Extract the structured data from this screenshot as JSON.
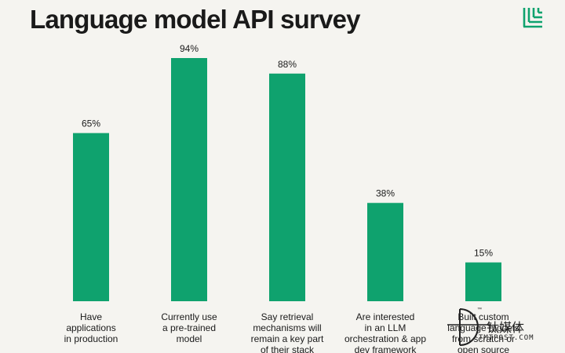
{
  "title": "Language model API survey",
  "colors": {
    "bar": "#0fa26e",
    "logo": "#0fa26e",
    "text": "#1a1a1a"
  },
  "chart_data": {
    "type": "bar",
    "categories": [
      [
        "Have",
        "applications",
        "in production"
      ],
      [
        "Currently use",
        "a pre-trained",
        "model"
      ],
      [
        "Say retrieval",
        "mechanisms will",
        "remain a key part",
        "of their stack"
      ],
      [
        "Are interested",
        "in an LLM",
        "orchestration & app",
        "dev framework"
      ],
      [
        "Built custom",
        "language models",
        "from scratch or",
        "open source"
      ]
    ],
    "values": [
      65,
      94,
      88,
      38,
      15
    ],
    "value_labels": [
      "65%",
      "94%",
      "88%",
      "38%",
      "15%"
    ],
    "ylim": [
      0,
      100
    ],
    "grid": false
  },
  "watermark": {
    "cn": "钛媒体",
    "en": "TMTPOST.COM",
    "tm": "™"
  },
  "logo_icon": "brand-logo-icon"
}
